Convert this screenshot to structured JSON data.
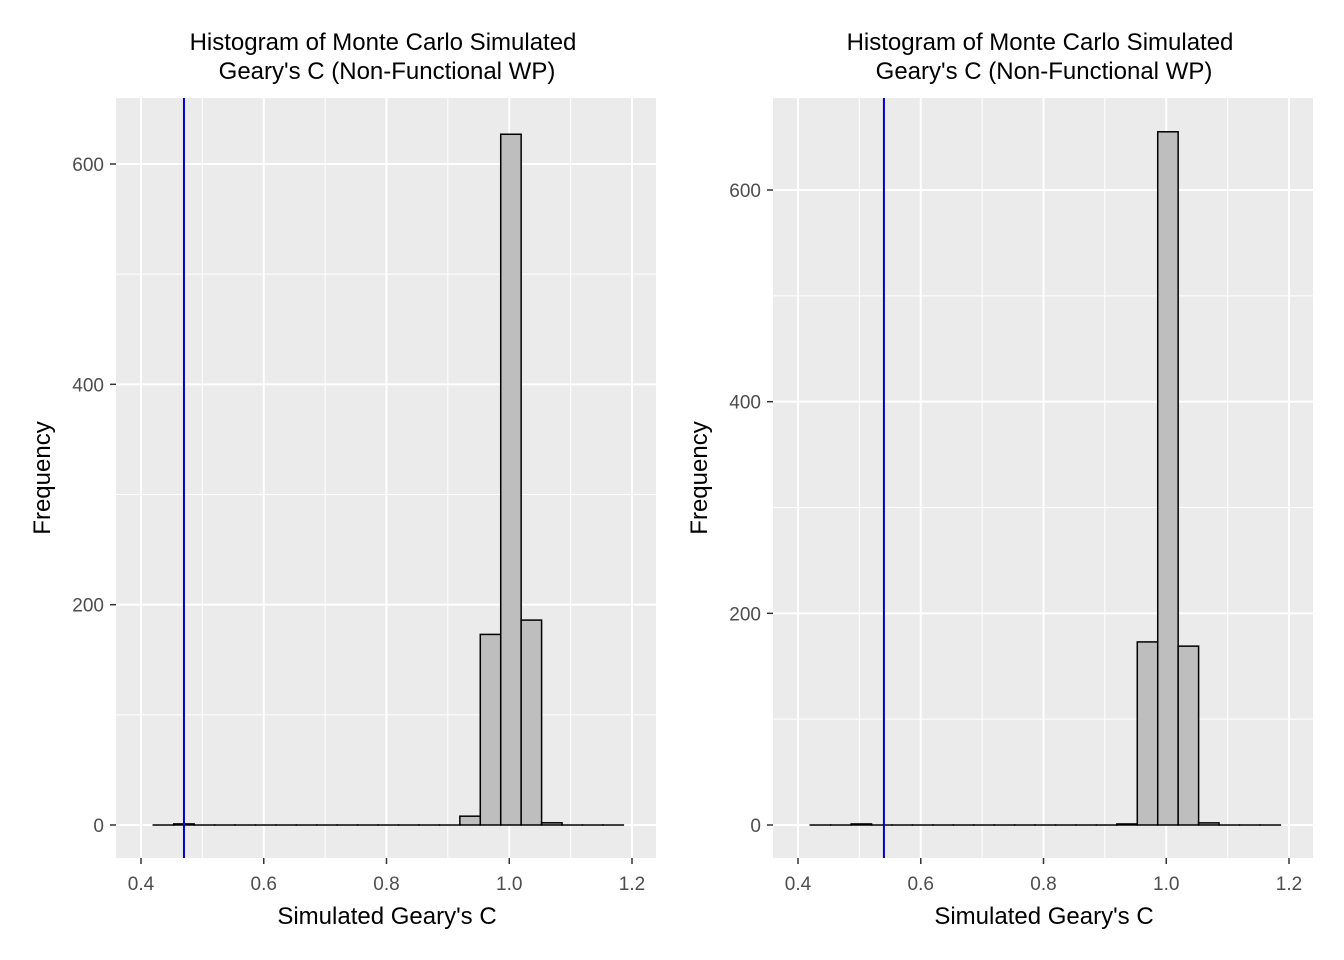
{
  "chart_data": [
    {
      "type": "bar",
      "title_line1": "Histogram of Monte Carlo Simulated",
      "title_line2": "Geary's C (Non-Functional WP)",
      "xlabel": "Simulated Geary's C",
      "ylabel": "Frequency",
      "xlim": [
        0.4,
        1.2
      ],
      "ylim": [
        0,
        600
      ],
      "x_ticks": [
        0.4,
        0.6,
        0.8,
        1.0,
        1.2
      ],
      "x_tick_labels": [
        "0.4",
        "0.6",
        "0.8",
        "1.0",
        "1.2"
      ],
      "y_ticks": [
        0,
        200,
        400,
        600
      ],
      "y_tick_labels": [
        "0",
        "200",
        "400",
        "600"
      ],
      "grid": true,
      "bar_fill": "#bebebe",
      "panel_bg": "#ebebeb",
      "vline": {
        "x": 0.47,
        "color": "#0000cd"
      },
      "bins": {
        "start": 0.42,
        "width": 0.0333,
        "counts": [
          0,
          1,
          0,
          0,
          0,
          0,
          0,
          0,
          0,
          0,
          0,
          0,
          0,
          0,
          0,
          8,
          173,
          627,
          186,
          2,
          0,
          0,
          0
        ]
      }
    },
    {
      "type": "bar",
      "title_line1": "Histogram of Monte Carlo Simulated",
      "title_line2": "Geary's C (Non-Functional WP)",
      "xlabel": "Simulated Geary's C",
      "ylabel": "Frequency",
      "xlim": [
        0.4,
        1.2
      ],
      "ylim": [
        0,
        600
      ],
      "x_ticks": [
        0.4,
        0.6,
        0.8,
        1.0,
        1.2
      ],
      "x_tick_labels": [
        "0.4",
        "0.6",
        "0.8",
        "1.0",
        "1.2"
      ],
      "y_ticks": [
        0,
        200,
        400,
        600
      ],
      "y_tick_labels": [
        "0",
        "200",
        "400",
        "600"
      ],
      "grid": true,
      "bar_fill": "#bebebe",
      "panel_bg": "#ebebeb",
      "vline": {
        "x": 0.54,
        "color": "#0000cd"
      },
      "bins": {
        "start": 0.42,
        "width": 0.0333,
        "counts": [
          0,
          0,
          1,
          0,
          0,
          0,
          0,
          0,
          0,
          0,
          0,
          0,
          0,
          0,
          0,
          1,
          173,
          655,
          169,
          2,
          0,
          0,
          0
        ]
      }
    }
  ]
}
